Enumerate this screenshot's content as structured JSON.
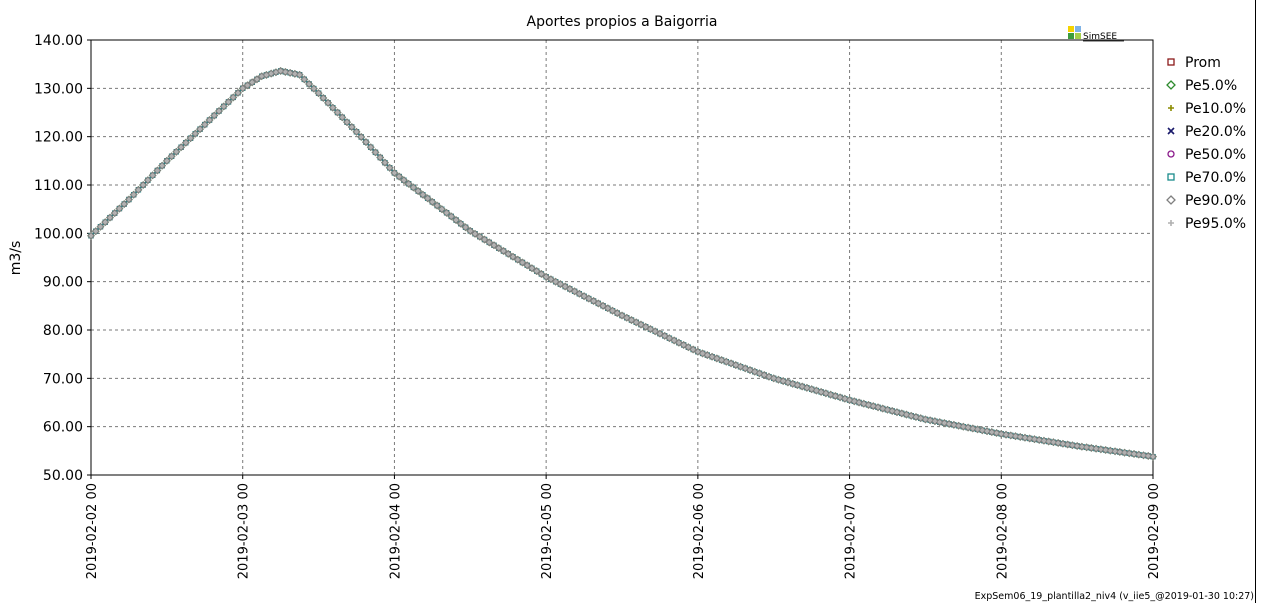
{
  "logo": {
    "text": "SimSEE",
    "colors": [
      "#f5d300",
      "#7fb3e6",
      "#3c9d3c",
      "#a6cf4b"
    ]
  },
  "footer": {
    "text": "ExpSem06_19_plantilla2_niv4 (v_iie5_@2019-01-30 10:27)"
  },
  "chart_data": {
    "type": "scatter",
    "title": "Aportes propios a Baigorria",
    "xlabel": "",
    "ylabel": "m3/s",
    "x_ticks": [
      "2019-02-02 00",
      "2019-02-03 00",
      "2019-02-04 00",
      "2019-02-05 00",
      "2019-02-06 00",
      "2019-02-07 00",
      "2019-02-08 00",
      "2019-02-09 00"
    ],
    "y_ticks": [
      "50.00",
      "60.00",
      "70.00",
      "80.00",
      "90.00",
      "100.00",
      "110.00",
      "120.00",
      "130.00",
      "140.00"
    ],
    "ylim": [
      50,
      140
    ],
    "xlim": [
      "2019-02-02 00",
      "2019-02-09 00"
    ],
    "grid": true,
    "legend_position": "right",
    "x": [
      "2019-02-02 00",
      "2019-02-02 06",
      "2019-02-02 12",
      "2019-02-02 18",
      "2019-02-03 00",
      "2019-02-03 03",
      "2019-02-03 06",
      "2019-02-03 09",
      "2019-02-03 12",
      "2019-02-03 18",
      "2019-02-04 00",
      "2019-02-04 12",
      "2019-02-05 00",
      "2019-02-05 12",
      "2019-02-06 00",
      "2019-02-06 12",
      "2019-02-07 00",
      "2019-02-07 12",
      "2019-02-08 00",
      "2019-02-08 12",
      "2019-02-09 00"
    ],
    "series": [
      {
        "name": "Prom",
        "color": "#8b1a1a",
        "marker": "square",
        "values": [
          99.5,
          107,
          115,
          122.5,
          130,
          132.5,
          133.6,
          132.8,
          129,
          121,
          112.5,
          100.5,
          91,
          83,
          75.5,
          70,
          65.5,
          61.5,
          58.5,
          56,
          53.8
        ]
      },
      {
        "name": "Pe5.0%",
        "color": "#2e8b2e",
        "marker": "diamond",
        "values": [
          99.5,
          107,
          115,
          122.5,
          130,
          132.5,
          133.6,
          132.8,
          129,
          121,
          112.5,
          100.5,
          91,
          83,
          75.5,
          70,
          65.5,
          61.5,
          58.5,
          56,
          53.8
        ]
      },
      {
        "name": "Pe10.0%",
        "color": "#8b8b00",
        "marker": "plus",
        "values": [
          99.5,
          107,
          115,
          122.5,
          130,
          132.5,
          133.6,
          132.8,
          129,
          121,
          112.5,
          100.5,
          91,
          83,
          75.5,
          70,
          65.5,
          61.5,
          58.5,
          56,
          53.8
        ]
      },
      {
        "name": "Pe20.0%",
        "color": "#1a1a6b",
        "marker": "cross",
        "values": [
          99.5,
          107,
          115,
          122.5,
          130,
          132.5,
          133.6,
          132.8,
          129,
          121,
          112.5,
          100.5,
          91,
          83,
          75.5,
          70,
          65.5,
          61.5,
          58.5,
          56,
          53.8
        ]
      },
      {
        "name": "Pe50.0%",
        "color": "#8b1a8b",
        "marker": "circle",
        "values": [
          99.5,
          107,
          115,
          122.5,
          130,
          132.5,
          133.6,
          132.8,
          129,
          121,
          112.5,
          100.5,
          91,
          83,
          75.5,
          70,
          65.5,
          61.5,
          58.5,
          56,
          53.8
        ]
      },
      {
        "name": "Pe70.0%",
        "color": "#1a8b8b",
        "marker": "square",
        "values": [
          99.5,
          107,
          115,
          122.5,
          130,
          132.5,
          133.6,
          132.8,
          129,
          121,
          112.5,
          100.5,
          91,
          83,
          75.5,
          70,
          65.5,
          61.5,
          58.5,
          56,
          53.8
        ]
      },
      {
        "name": "Pe90.0%",
        "color": "#808080",
        "marker": "diamond",
        "values": [
          99.5,
          107,
          115,
          122.5,
          130,
          132.5,
          133.6,
          132.8,
          129,
          121,
          112.5,
          100.5,
          91,
          83,
          75.5,
          70,
          65.5,
          61.5,
          58.5,
          56,
          53.8
        ]
      },
      {
        "name": "Pe95.0%",
        "color": "#b0b0b0",
        "marker": "plus",
        "values": [
          99.5,
          107,
          115,
          122.5,
          130,
          132.5,
          133.6,
          132.8,
          129,
          121,
          112.5,
          100.5,
          91,
          83,
          75.5,
          70,
          65.5,
          61.5,
          58.5,
          56,
          53.8
        ]
      }
    ]
  }
}
